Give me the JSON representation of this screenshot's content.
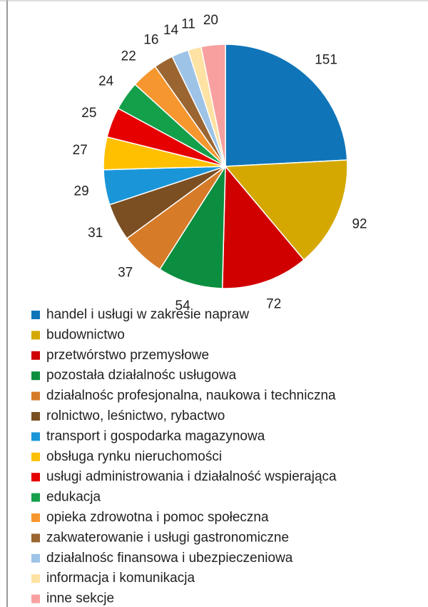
{
  "chart_data": {
    "type": "pie",
    "categories": [
      "handel i usługi w zakresie napraw",
      "budownictwo",
      "przetwórstwo przemysłowe",
      "pozostała działalnośc usługowa",
      "działalnośc profesjonalna, naukowa i techniczna",
      "rolnictwo, leśnictwo, rybactwo",
      "transport i gospodarka magazynowa",
      "obsługa rynku nieruchomości",
      "usługi administrowania i działalność wspierająca",
      "edukacja",
      "opieka zdrowotna i pomoc społeczna",
      "zakwaterowanie i usługi gastronomiczne",
      "działalnośc finansowa i ubezpieczeniowa",
      "informacja i komunikacja",
      "inne sekcje"
    ],
    "values": [
      151,
      92,
      72,
      54,
      37,
      31,
      29,
      27,
      25,
      24,
      22,
      16,
      14,
      11,
      20
    ],
    "colors": [
      "#0f75b8",
      "#d4a800",
      "#d00000",
      "#0b8e3f",
      "#d67b28",
      "#7b4f22",
      "#1a96d8",
      "#ffc000",
      "#e60000",
      "#14a04a",
      "#f6962e",
      "#9a6531",
      "#9dc3e6",
      "#fde2a3",
      "#f8a0a0"
    ]
  }
}
